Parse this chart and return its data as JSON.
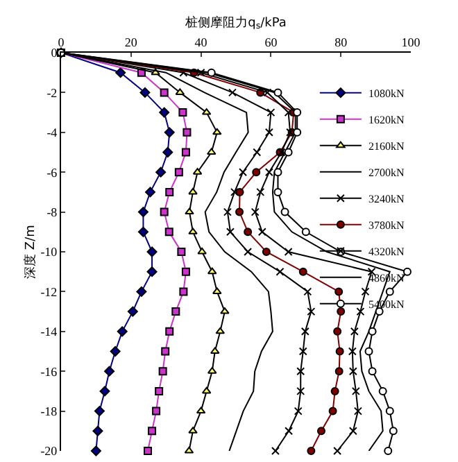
{
  "chart_data": {
    "type": "line",
    "xlabel": "桩侧摩阻力q$_{s}$/kPa",
    "ylabel": "深度 Z/m",
    "xlim": [
      0,
      100
    ],
    "xticks": [
      0,
      20,
      40,
      60,
      80,
      100
    ],
    "ylim": [
      -20,
      0
    ],
    "yticks": [
      0,
      -2,
      -4,
      -6,
      -8,
      -10,
      -12,
      -14,
      -16,
      -18,
      -20
    ],
    "grid": false,
    "legend": "right",
    "line_style": "solid",
    "series": [
      {
        "name": "1080kN",
        "color": "#000080",
        "marker": "diamond",
        "x": [
          0,
          17,
          24,
          29.5,
          31,
          30.5,
          28.5,
          25.5,
          23.5,
          23.5,
          26,
          26,
          23,
          20.5,
          17.5,
          15.5,
          13.8,
          12.5,
          11,
          10.5,
          10
        ],
        "values": [
          0,
          -1,
          -2,
          -3,
          -4,
          -5,
          -6,
          -7,
          -8,
          -9,
          -10,
          -11,
          -12,
          -13,
          -14,
          -15,
          -16,
          -17,
          -18,
          -19,
          -20
        ]
      },
      {
        "name": "1620kN",
        "color": "#cc33cc",
        "marker": "square",
        "x": [
          0,
          23,
          29.5,
          34.8,
          36,
          35.7,
          33.7,
          31,
          29.5,
          30.9,
          34.4,
          35.7,
          35,
          32.8,
          31,
          29.8,
          29.1,
          28,
          27.2,
          26,
          24.8
        ],
        "values": [
          0,
          -1,
          -2,
          -3,
          -4,
          -5,
          -6,
          -7,
          -8,
          -9,
          -10,
          -11,
          -12,
          -13,
          -14,
          -15,
          -16,
          -17,
          -18,
          -19,
          -20
        ]
      },
      {
        "name": "2160kN",
        "color": "#ffff66",
        "marker": "triangle",
        "x": [
          0,
          27,
          34,
          41.6,
          44.6,
          43,
          39,
          37.7,
          36.7,
          37.7,
          40.3,
          43.2,
          44.6,
          46.8,
          45.5,
          44,
          43.2,
          41.6,
          40,
          37.7,
          36.6
        ],
        "values": [
          0,
          -1,
          -2,
          -3,
          -4,
          -5,
          -6,
          -7,
          -8,
          -9,
          -10,
          -11,
          -12,
          -13,
          -14,
          -15,
          -16,
          -17,
          -18,
          -19,
          -20
        ]
      },
      {
        "name": "2700kN",
        "color": "#000000",
        "marker": "none",
        "x": [
          0,
          30,
          41,
          53,
          53.5,
          50,
          46.6,
          44.5,
          41.2,
          42.3,
          46.8,
          54.4,
          59.3,
          60,
          60.5,
          57.3,
          55.4,
          55,
          52.1,
          50.1,
          48.1
        ],
        "values": [
          0,
          -1,
          -2,
          -3,
          -4,
          -5,
          -6,
          -7,
          -8,
          -9,
          -10,
          -11,
          -12,
          -13,
          -14,
          -15,
          -16,
          -17,
          -18,
          -19,
          -20
        ]
      },
      {
        "name": "3240kN",
        "color": "#000000",
        "marker": "cross",
        "x": [
          0,
          35,
          49,
          60,
          59.5,
          56,
          52,
          49.6,
          47.6,
          48.4,
          53.4,
          62.6,
          70.5,
          71.5,
          69.8,
          69.2,
          68.5,
          68.5,
          67.8,
          65.1,
          61.3
        ],
        "values": [
          0,
          -1,
          -2,
          -3,
          -4,
          -5,
          -6,
          -7,
          -8,
          -9,
          -10,
          -11,
          -12,
          -13,
          -14,
          -15,
          -16,
          -17,
          -18,
          -19,
          -20
        ]
      },
      {
        "name": "3780kN",
        "color": "#800000",
        "marker": "circle",
        "x": [
          0,
          38,
          57,
          66.5,
          66,
          62.6,
          55.8,
          51.1,
          51,
          53.4,
          58.7,
          69.2,
          79.4,
          80,
          79,
          79.7,
          79.5,
          78.3,
          77.7,
          74.4,
          71.5
        ],
        "values": [
          0,
          -1,
          -2,
          -3,
          -4,
          -5,
          -6,
          -7,
          -8,
          -9,
          -10,
          -11,
          -12,
          -13,
          -14,
          -15,
          -16,
          -17,
          -18,
          -19,
          -20
        ]
      },
      {
        "name": "4320kN",
        "color": "#000000",
        "marker": "cross",
        "x": [
          0,
          40,
          59,
          65,
          65.5,
          63,
          59.5,
          57,
          55.5,
          57.5,
          65,
          88.8,
          87,
          85.6,
          83.9,
          83.3,
          83.5,
          84.3,
          84.9,
          83.5,
          79
        ],
        "values": [
          0,
          -1,
          -2,
          -3,
          -4,
          -5,
          -6,
          -7,
          -8,
          -9,
          -10,
          -11,
          -12,
          -13,
          -14,
          -15,
          -16,
          -17,
          -18,
          -19,
          -20
        ]
      },
      {
        "name": "4860kN",
        "color": "#000000",
        "marker": "none",
        "x": [
          0,
          42,
          61,
          67,
          67,
          64,
          61,
          60.5,
          61,
          66,
          76,
          94,
          92,
          90,
          88,
          85.5,
          86,
          88,
          91.5,
          92,
          88
        ],
        "values": [
          0,
          -1,
          -2,
          -3,
          -4,
          -5,
          -6,
          -7,
          -8,
          -9,
          -10,
          -11,
          -12,
          -13,
          -14,
          -15,
          -16,
          -17,
          -18,
          -19,
          -20
        ]
      },
      {
        "name": "5400kN",
        "color": "#ffffff",
        "marker": "circle",
        "x": [
          0,
          43,
          62,
          67.5,
          67.5,
          65,
          62,
          62,
          64,
          70,
          80,
          99,
          94,
          91,
          89,
          88,
          89,
          92,
          94,
          95,
          93.5
        ],
        "values": [
          0,
          -1,
          -2,
          -3,
          -4,
          -5,
          -6,
          -7,
          -8,
          -9,
          -10,
          -11,
          -12,
          -13,
          -14,
          -15,
          -16,
          -17,
          -18,
          -19,
          -20
        ]
      }
    ]
  }
}
